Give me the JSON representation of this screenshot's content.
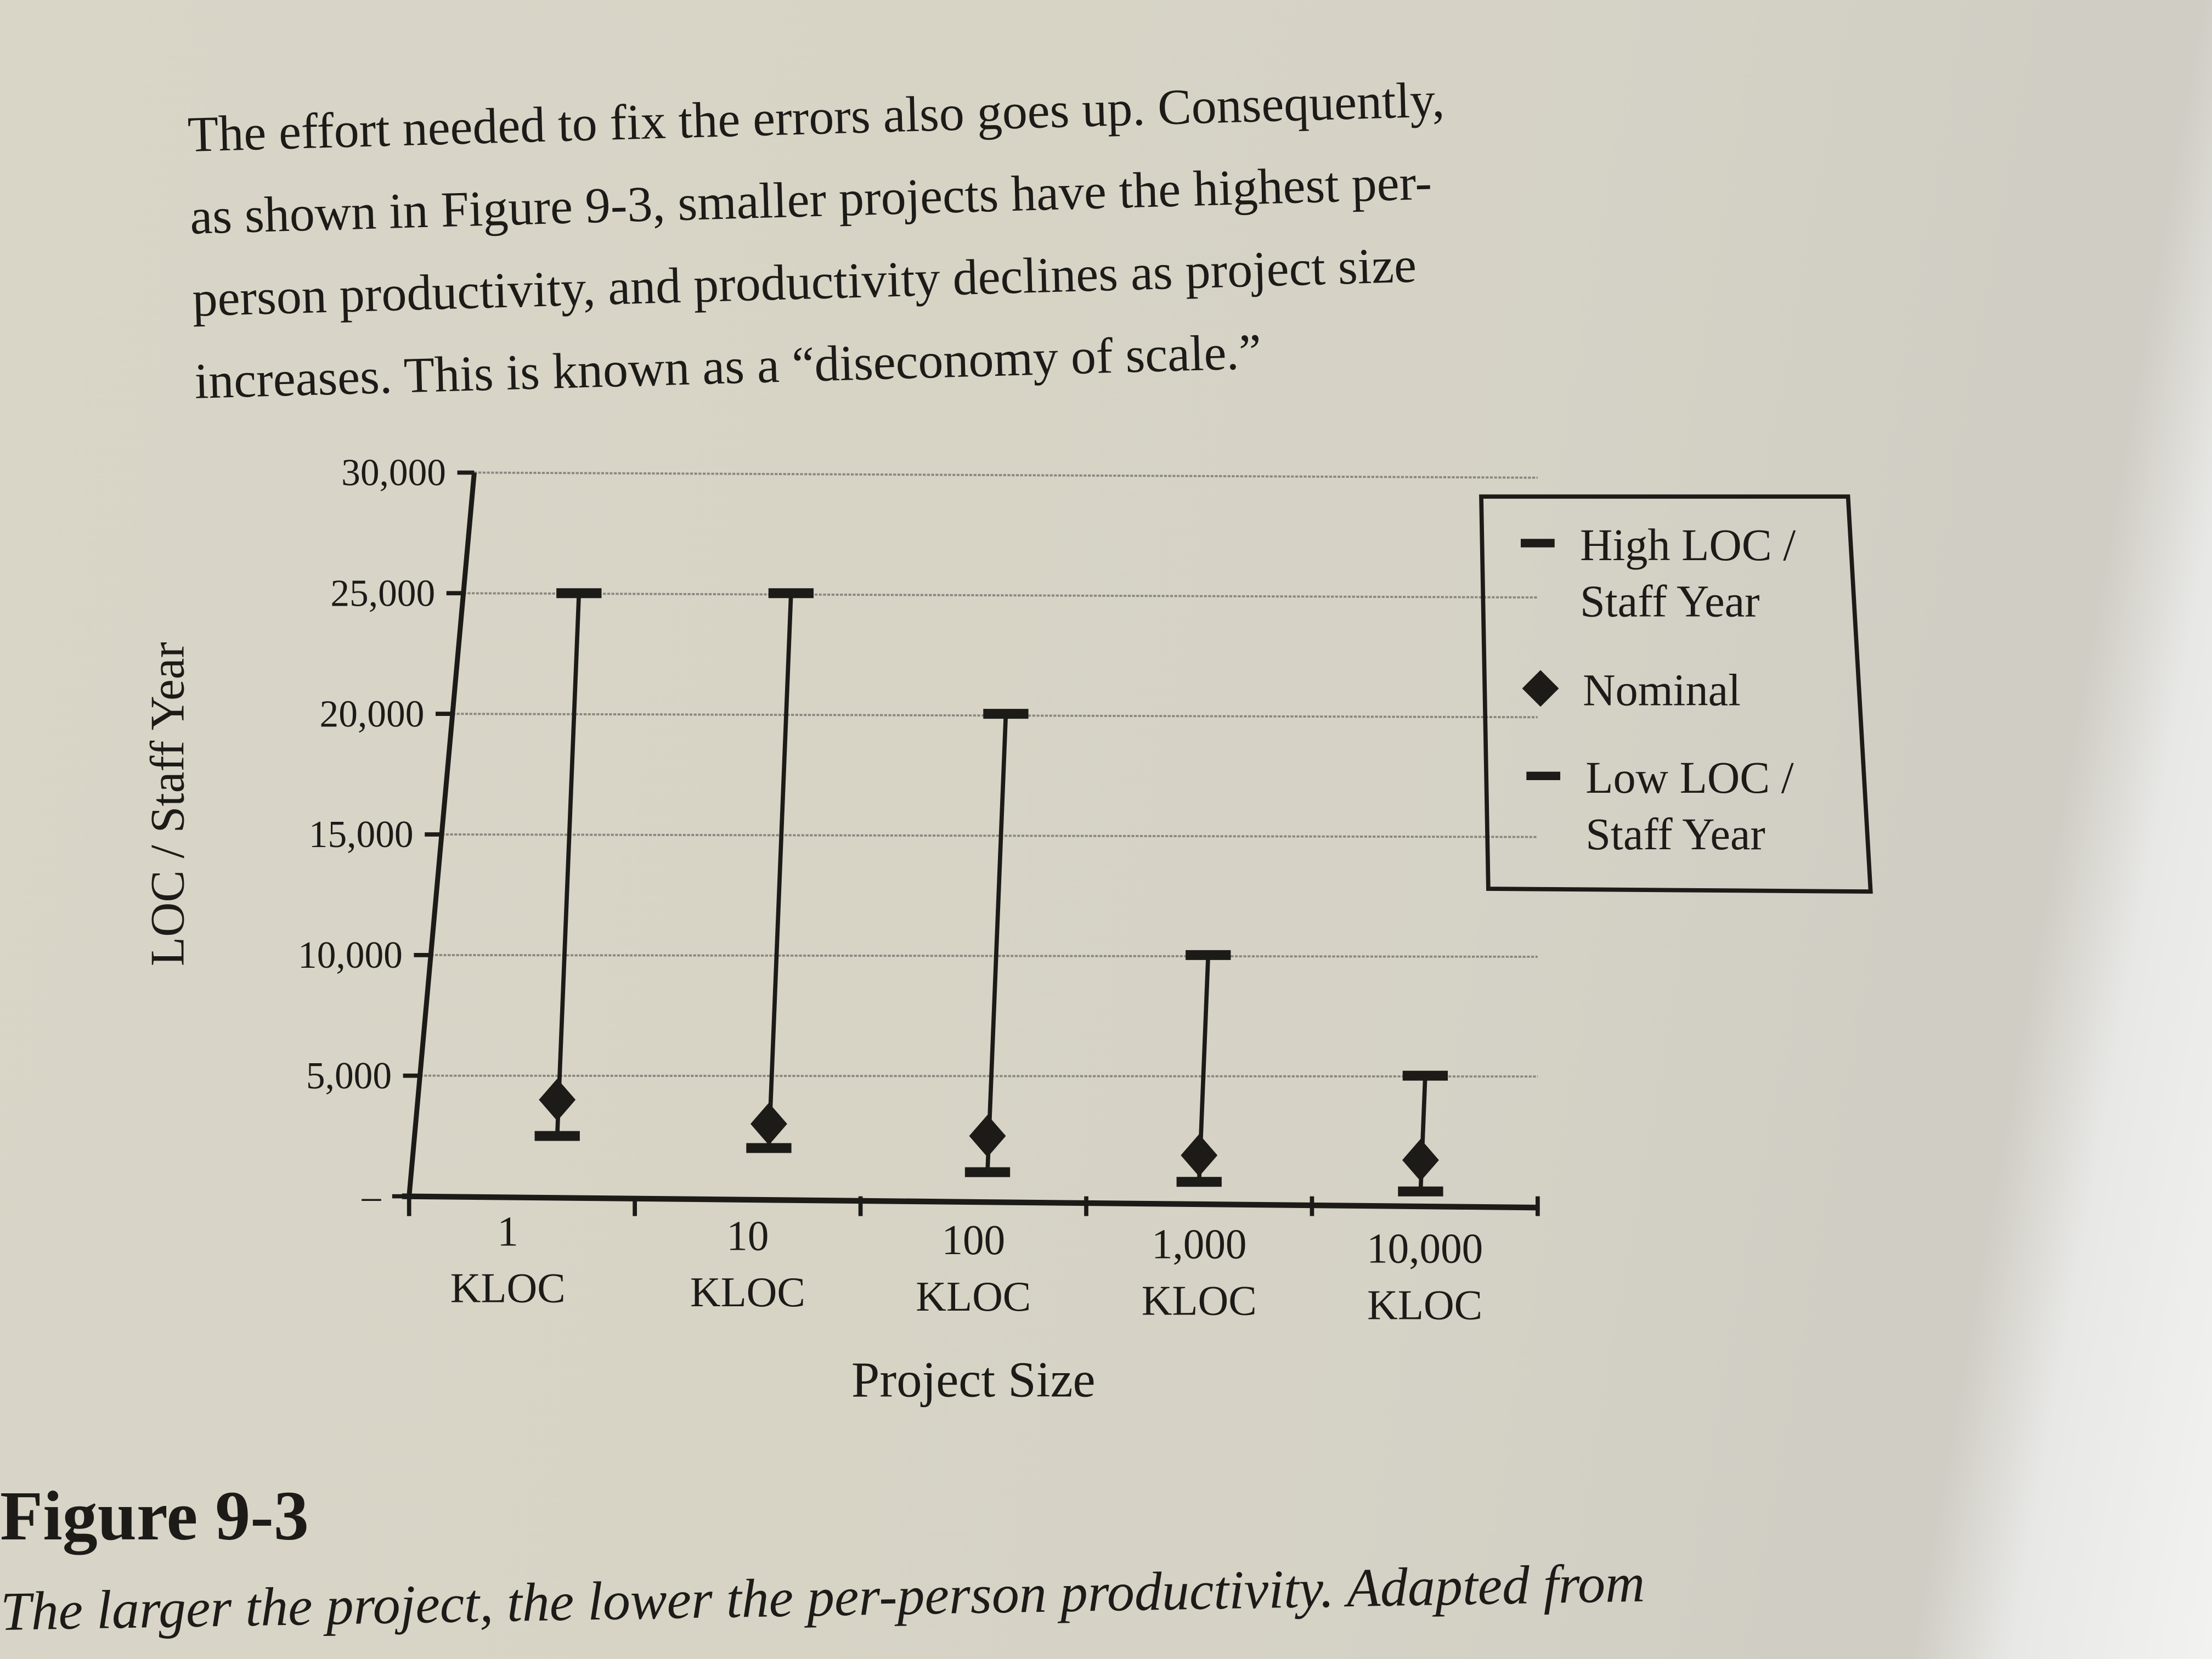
{
  "paragraph": [
    "The effort needed to fix the errors also goes up. Consequently,",
    "as shown in Figure 9-3, smaller projects have the highest per-",
    "person productivity, and productivity declines as project size",
    "increases. This is known as a “diseconomy of scale.”"
  ],
  "figure_label": "Figure 9-3",
  "caption": "The larger the project, the lower the per-person productivity. Adapted from",
  "chart_data": {
    "type": "error-bar",
    "xlabel": "Project Size",
    "ylabel": "LOC / Staff Year",
    "categories": [
      "1 KLOC",
      "10 KLOC",
      "100 KLOC",
      "1,000 KLOC",
      "10,000 KLOC"
    ],
    "category_lines": [
      [
        "1",
        "KLOC"
      ],
      [
        "10",
        "KLOC"
      ],
      [
        "100",
        "KLOC"
      ],
      [
        "1,000",
        "KLOC"
      ],
      [
        "10,000",
        "KLOC"
      ]
    ],
    "yticks": [
      "–",
      "5,000",
      "10,000",
      "15,000",
      "20,000",
      "25,000",
      "30,000"
    ],
    "ytick_values": [
      0,
      5000,
      10000,
      15000,
      20000,
      25000,
      30000
    ],
    "ylim": [
      0,
      30000
    ],
    "grid": true,
    "legend_placement": "right",
    "series": [
      {
        "name": "High LOC / Staff Year",
        "values": [
          25000,
          25000,
          20000,
          10000,
          5000
        ]
      },
      {
        "name": "Nominal",
        "values": [
          4000,
          3000,
          2500,
          1700,
          1500
        ]
      },
      {
        "name": "Low LOC / Staff Year",
        "values": [
          2500,
          2000,
          1000,
          600,
          200
        ]
      }
    ],
    "legend": [
      {
        "marker": "dash",
        "lines": [
          "High LOC /",
          "Staff Year"
        ]
      },
      {
        "marker": "diamond",
        "lines": [
          "Nominal"
        ]
      },
      {
        "marker": "dash",
        "lines": [
          "Low LOC /",
          "Staff Year"
        ]
      }
    ],
    "colors": {
      "ink": "#1c1b18",
      "grid": "#8a8780"
    }
  }
}
